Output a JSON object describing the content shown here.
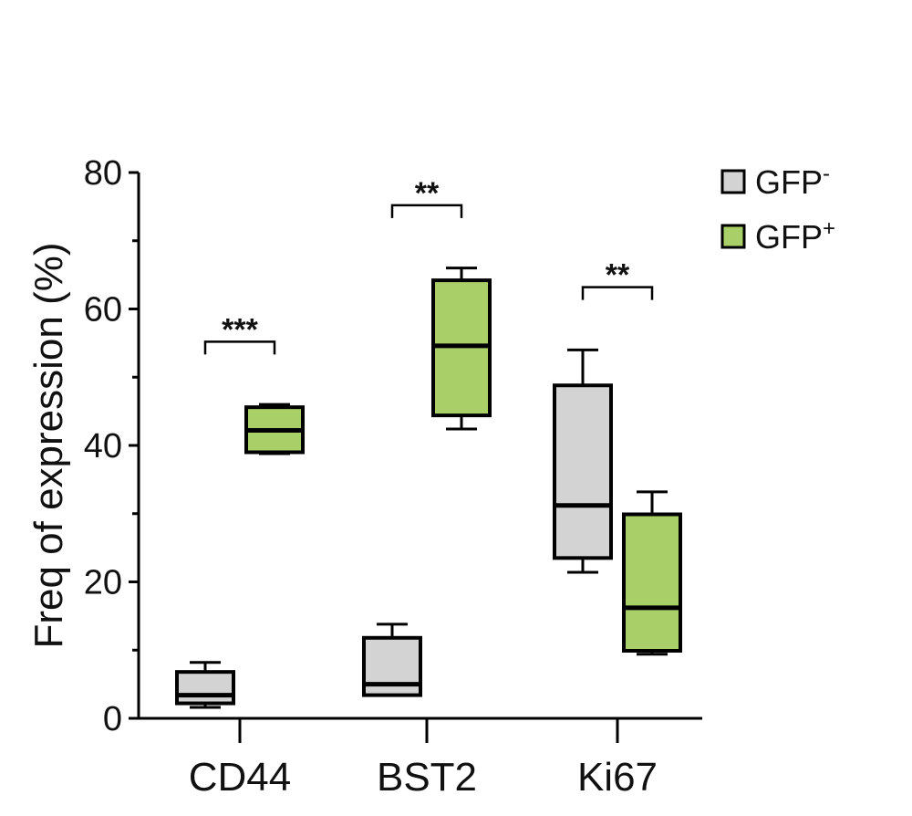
{
  "colors": {
    "gfp_neg": "#d3d3d3",
    "gfp_pos": "#a9cf69",
    "axis": "#000000"
  },
  "chart_data": {
    "type": "box",
    "ylabel": "Freq of expression (%)",
    "ylim": [
      0,
      80
    ],
    "yticks": [
      0,
      20,
      40,
      60,
      80
    ],
    "yminor_ticks": [
      10,
      30,
      50,
      70
    ],
    "categories": [
      "CD44",
      "BST2",
      "Ki67"
    ],
    "legend_position": "top-right",
    "series": [
      {
        "name": "GFP",
        "name_sup": "-",
        "color_key": "gfp_neg",
        "boxes": [
          {
            "min": 1.6,
            "q1": 2.2,
            "median": 3.4,
            "q3": 6.8,
            "max": 8.2
          },
          {
            "min": 3.4,
            "q1": 3.4,
            "median": 5.0,
            "q3": 11.8,
            "max": 13.8
          },
          {
            "min": 21.4,
            "q1": 23.5,
            "median": 31.2,
            "q3": 48.8,
            "max": 54.0
          }
        ]
      },
      {
        "name": "GFP",
        "name_sup": "+",
        "color_key": "gfp_pos",
        "boxes": [
          {
            "min": 38.8,
            "q1": 39.0,
            "median": 42.2,
            "q3": 45.6,
            "max": 46.0
          },
          {
            "min": 42.4,
            "q1": 44.4,
            "median": 54.6,
            "q3": 64.2,
            "max": 66.0
          },
          {
            "min": 9.4,
            "q1": 9.9,
            "median": 16.2,
            "q3": 29.9,
            "max": 33.2
          }
        ]
      }
    ],
    "significance": [
      {
        "category": "CD44",
        "label": "***",
        "y": 55.2
      },
      {
        "category": "BST2",
        "label": "**",
        "y": 75.2
      },
      {
        "category": "Ki67",
        "label": "**",
        "y": 63.2
      }
    ]
  }
}
